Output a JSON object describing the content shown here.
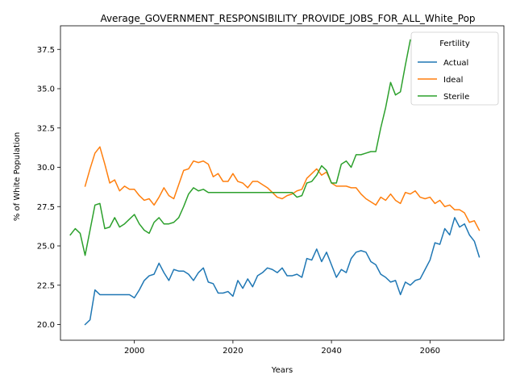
{
  "chart_data": {
    "type": "line",
    "title": "Average_GOVERNMENT_RESPONSIBILITY_PROVIDE_JOBS_FOR_ALL_White_Pop",
    "xlabel": "Years",
    "ylabel": "% of White Population",
    "xlim": [
      1985,
      2075
    ],
    "ylim": [
      19.0,
      39.0
    ],
    "xticks": [
      2000,
      2020,
      2040,
      2060
    ],
    "yticks": [
      20.0,
      22.5,
      25.0,
      27.5,
      30.0,
      32.5,
      35.0,
      37.5
    ],
    "grid": false,
    "legend": {
      "title": "Fertility",
      "placement": "top-right"
    },
    "series": [
      {
        "name": "Actual",
        "color": "#1f77b4",
        "x": [
          1990,
          1991,
          1992,
          1993,
          1994,
          1995,
          1996,
          1997,
          1998,
          1999,
          2000,
          2001,
          2002,
          2003,
          2004,
          2005,
          2006,
          2007,
          2008,
          2009,
          2010,
          2011,
          2012,
          2013,
          2014,
          2015,
          2016,
          2017,
          2018,
          2019,
          2020,
          2021,
          2022,
          2023,
          2024,
          2025,
          2026,
          2027,
          2028,
          2029,
          2030,
          2031,
          2032,
          2033,
          2034,
          2035,
          2036,
          2037,
          2038,
          2039,
          2040,
          2041,
          2042,
          2043,
          2044,
          2045,
          2046,
          2047,
          2048,
          2049,
          2050,
          2051,
          2052,
          2053,
          2054,
          2055,
          2056,
          2057,
          2058,
          2059,
          2060,
          2061,
          2062,
          2063,
          2064,
          2065,
          2066,
          2067,
          2068,
          2069,
          2070
        ],
        "y": [
          20.0,
          20.3,
          22.2,
          21.9,
          21.9,
          21.9,
          21.9,
          21.9,
          21.9,
          21.9,
          21.7,
          22.2,
          22.8,
          23.1,
          23.2,
          23.9,
          23.3,
          22.8,
          23.5,
          23.4,
          23.4,
          23.2,
          22.8,
          23.3,
          23.6,
          22.7,
          22.6,
          22.0,
          22.0,
          22.1,
          21.8,
          22.8,
          22.3,
          22.9,
          22.4,
          23.1,
          23.3,
          23.6,
          23.5,
          23.3,
          23.6,
          23.1,
          23.1,
          23.2,
          23.0,
          24.2,
          24.1,
          24.8,
          24.0,
          24.6,
          23.8,
          23.0,
          23.5,
          23.3,
          24.2,
          24.6,
          24.7,
          24.6,
          24.0,
          23.8,
          23.2,
          23.0,
          22.7,
          22.8,
          21.9,
          22.7,
          22.5,
          22.8,
          22.9,
          23.5,
          24.1,
          25.2,
          25.1,
          26.1,
          25.7,
          26.8,
          26.2,
          26.4,
          25.7,
          25.3,
          24.3
        ]
      },
      {
        "name": "Ideal",
        "color": "#ff7f0e",
        "x": [
          1990,
          1991,
          1992,
          1993,
          1994,
          1995,
          1996,
          1997,
          1998,
          1999,
          2000,
          2001,
          2002,
          2003,
          2004,
          2005,
          2006,
          2007,
          2008,
          2009,
          2010,
          2011,
          2012,
          2013,
          2014,
          2015,
          2016,
          2017,
          2018,
          2019,
          2020,
          2021,
          2022,
          2023,
          2024,
          2025,
          2026,
          2027,
          2028,
          2029,
          2030,
          2031,
          2032,
          2033,
          2034,
          2035,
          2036,
          2037,
          2038,
          2039,
          2040,
          2041,
          2042,
          2043,
          2044,
          2045,
          2046,
          2047,
          2048,
          2049,
          2050,
          2051,
          2052,
          2053,
          2054,
          2055,
          2056,
          2057,
          2058,
          2059,
          2060,
          2061,
          2062,
          2063,
          2064,
          2065,
          2066,
          2067,
          2068,
          2069,
          2070
        ],
        "y": [
          28.8,
          29.9,
          30.9,
          31.3,
          30.2,
          29.0,
          29.2,
          28.5,
          28.8,
          28.6,
          28.6,
          28.2,
          27.9,
          28.0,
          27.6,
          28.1,
          28.7,
          28.2,
          28.0,
          28.9,
          29.8,
          29.9,
          30.4,
          30.3,
          30.4,
          30.2,
          29.4,
          29.6,
          29.1,
          29.1,
          29.6,
          29.1,
          29.0,
          28.7,
          29.1,
          29.1,
          28.9,
          28.7,
          28.4,
          28.1,
          28.0,
          28.2,
          28.3,
          28.5,
          28.6,
          29.3,
          29.6,
          29.9,
          29.5,
          29.7,
          29.0,
          28.8,
          28.8,
          28.8,
          28.7,
          28.7,
          28.3,
          28.0,
          27.8,
          27.6,
          28.1,
          27.9,
          28.3,
          27.9,
          27.7,
          28.4,
          28.3,
          28.5,
          28.1,
          28.0,
          28.1,
          27.7,
          27.9,
          27.5,
          27.6,
          27.3,
          27.3,
          27.1,
          26.5,
          26.6,
          26.0
        ]
      },
      {
        "name": "Sterile",
        "color": "#2ca02c",
        "x": [
          1987,
          1988,
          1989,
          1990,
          1991,
          1992,
          1993,
          1994,
          1995,
          1996,
          1997,
          1998,
          1999,
          2000,
          2001,
          2002,
          2003,
          2004,
          2005,
          2006,
          2007,
          2008,
          2009,
          2010,
          2011,
          2012,
          2013,
          2014,
          2015,
          2016,
          2017,
          2018,
          2019,
          2020,
          2021,
          2022,
          2023,
          2024,
          2025,
          2026,
          2027,
          2028,
          2029,
          2030,
          2031,
          2032,
          2033,
          2034,
          2035,
          2036,
          2037,
          2038,
          2039,
          2040,
          2041,
          2042,
          2043,
          2044,
          2045,
          2046,
          2047,
          2048,
          2049,
          2050,
          2051,
          2052,
          2053,
          2054,
          2055,
          2056
        ],
        "y": [
          25.7,
          26.1,
          25.8,
          24.4,
          26.0,
          27.6,
          27.7,
          26.1,
          26.2,
          26.8,
          26.2,
          26.4,
          26.7,
          27.0,
          26.4,
          26.0,
          25.8,
          26.5,
          26.8,
          26.4,
          26.4,
          26.5,
          26.8,
          27.5,
          28.3,
          28.7,
          28.5,
          28.6,
          28.4,
          28.4,
          28.4,
          28.4,
          28.4,
          28.4,
          28.4,
          28.4,
          28.4,
          28.4,
          28.4,
          28.4,
          28.4,
          28.4,
          28.4,
          28.4,
          28.4,
          28.4,
          28.1,
          28.2,
          29.0,
          29.1,
          29.5,
          30.1,
          29.8,
          29.0,
          29.0,
          30.2,
          30.4,
          30.0,
          30.8,
          30.8,
          30.9,
          31.0,
          31.0,
          32.5,
          33.8,
          35.4,
          34.6,
          34.8,
          36.5,
          38.1
        ]
      }
    ]
  }
}
